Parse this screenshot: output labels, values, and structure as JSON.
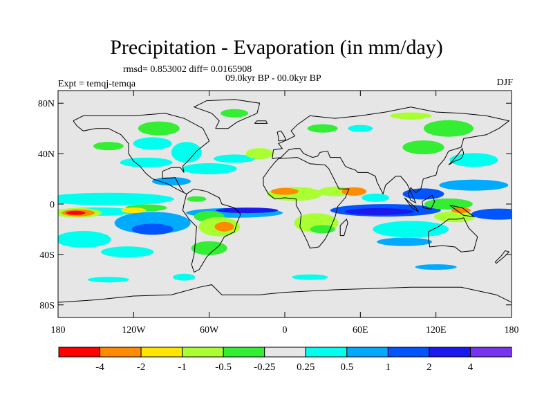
{
  "title": "Precipitation - Evaporation (in mm/day)",
  "stats": "rmsd= 0.853002 diff= 0.0165908",
  "period": "09.0kyr BP - 00.0kyr BP",
  "experiment": "Expt = temqj-temqa",
  "season": "DJF",
  "map": {
    "lat_ticks": [
      "80N",
      "40N",
      "0",
      "40S",
      "80S"
    ],
    "lat_values": [
      80,
      40,
      0,
      -40,
      -80
    ],
    "lon_ticks": [
      "180",
      "120W",
      "60W",
      "0",
      "60E",
      "120E",
      "180"
    ],
    "lon_values": [
      -180,
      -120,
      -60,
      0,
      60,
      120,
      180
    ],
    "lon_range": [
      -180,
      180
    ],
    "lat_range": [
      -90,
      90
    ],
    "ocean_color": "#e6e6e6",
    "coast_color": "#000000"
  },
  "colorbar": {
    "labels": [
      "-4",
      "-2",
      "-1",
      "-0.5",
      "-0.25",
      "0.25",
      "0.5",
      "1",
      "2",
      "4"
    ],
    "colors": [
      "#ff0000",
      "#ff8c00",
      "#ffe600",
      "#aaff33",
      "#33ee33",
      "#e6e6e6",
      "#00ffee",
      "#00aaff",
      "#0055ff",
      "#1a1aee",
      "#7733ee"
    ]
  }
}
